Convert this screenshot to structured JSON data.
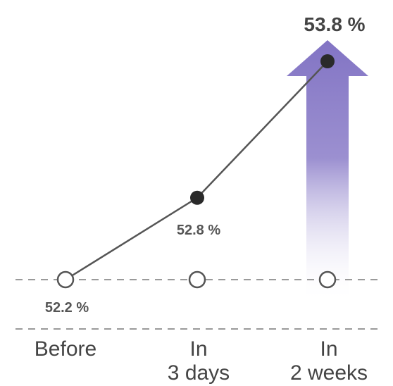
{
  "chart_data": {
    "type": "line",
    "title": "",
    "xlabel": "",
    "ylabel": "",
    "categories": [
      "Before",
      "In\n3 days",
      "In\n2 weeks"
    ],
    "series": [
      {
        "values": [
          52.2,
          52.8,
          53.8
        ],
        "labels": [
          "52.2 %",
          "52.8 %",
          "53.8 %"
        ],
        "marker_styles": [
          "hollow",
          "filled",
          "filled"
        ]
      }
    ],
    "baseline_value": 52.2,
    "ylim": [
      51.8,
      54.0
    ],
    "grid": false,
    "legend": "none",
    "arrow_highlight": {
      "category_index": 2,
      "colors": [
        "#8274c4",
        "#ffffff"
      ]
    },
    "colors": {
      "line": "#555555",
      "marker_fill": "#2a2a2a",
      "hollow_fill": "#ffffff",
      "dash": "#9a9a9a",
      "text": "#4a4a4a"
    }
  }
}
